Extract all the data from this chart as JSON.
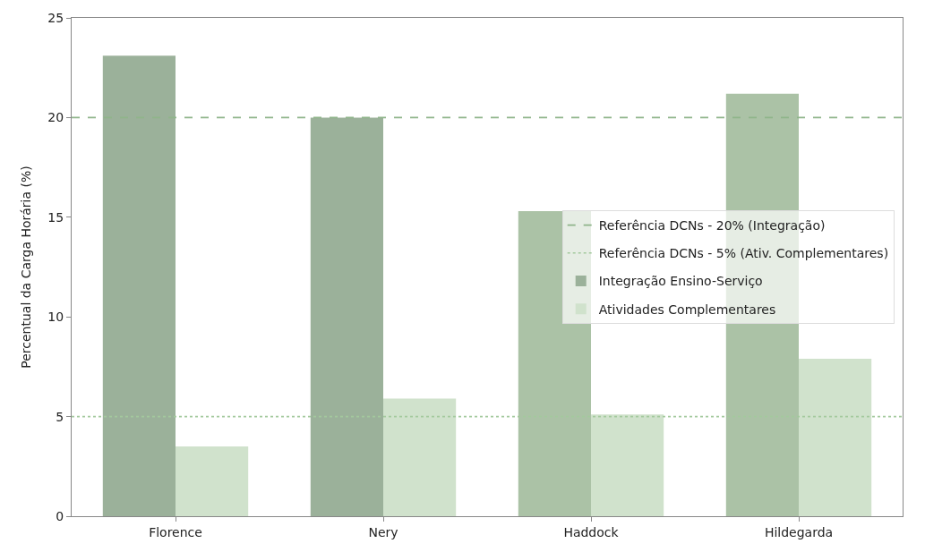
{
  "chart_data": {
    "type": "bar",
    "ylabel": "Percentual da Carga Horária (%)",
    "categories": [
      "Florence",
      "Nery",
      "Haddock",
      "Hildegarda"
    ],
    "series": [
      {
        "name": "Integração Ensino-Serviço",
        "colors": [
          "#9bb19a",
          "#9bb19a",
          "#abc2a6",
          "#abc2a6"
        ],
        "values": [
          23.1,
          20.0,
          15.3,
          21.2
        ]
      },
      {
        "name": "Atividades Complementares",
        "color": "#d0e2cc",
        "values": [
          3.5,
          5.9,
          5.1,
          7.9
        ]
      }
    ],
    "ref_lines": [
      {
        "axis": "y",
        "value": 20,
        "label": "Referência DCNs - 20% (Integração)",
        "color": "#8fb58a",
        "line_style": "dashed"
      },
      {
        "axis": "y",
        "value": 5,
        "label": "Referência DCNs - 5% (Ativ. Complementares)",
        "color": "#a3c99d",
        "line_style": "dotted"
      }
    ],
    "ylim": [
      0,
      25
    ],
    "yticks": [
      0,
      5,
      10,
      15,
      20,
      25
    ],
    "grid": false,
    "legend": "right"
  }
}
